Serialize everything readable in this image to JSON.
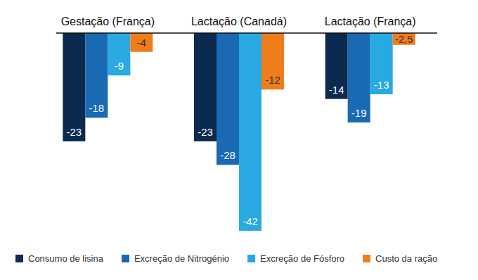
{
  "chart_data": {
    "type": "bar",
    "categories": [
      "Gestação (França)",
      "Lactação (Canadá)",
      "Lactação (França)"
    ],
    "series": [
      {
        "name": "Consumo de lisina",
        "color": "#0b2a4f",
        "values": [
          -23,
          -23,
          -14
        ]
      },
      {
        "name": "Excreção de Nitrogénio",
        "color": "#1a69b3",
        "values": [
          -18,
          -28,
          -19
        ]
      },
      {
        "name": "Excreção de Fósforo",
        "color": "#29a9e1",
        "values": [
          -9,
          -42,
          -13
        ]
      },
      {
        "name": "Custo da ração",
        "color": "#f07d1b",
        "values": [
          -4,
          -12,
          -2.5
        ],
        "value_labels": [
          "-4",
          "-12",
          "-2,5"
        ]
      }
    ],
    "ylim": [
      -42,
      0
    ],
    "data_labels": true,
    "tick_labels": "x",
    "legend": "bottom"
  }
}
